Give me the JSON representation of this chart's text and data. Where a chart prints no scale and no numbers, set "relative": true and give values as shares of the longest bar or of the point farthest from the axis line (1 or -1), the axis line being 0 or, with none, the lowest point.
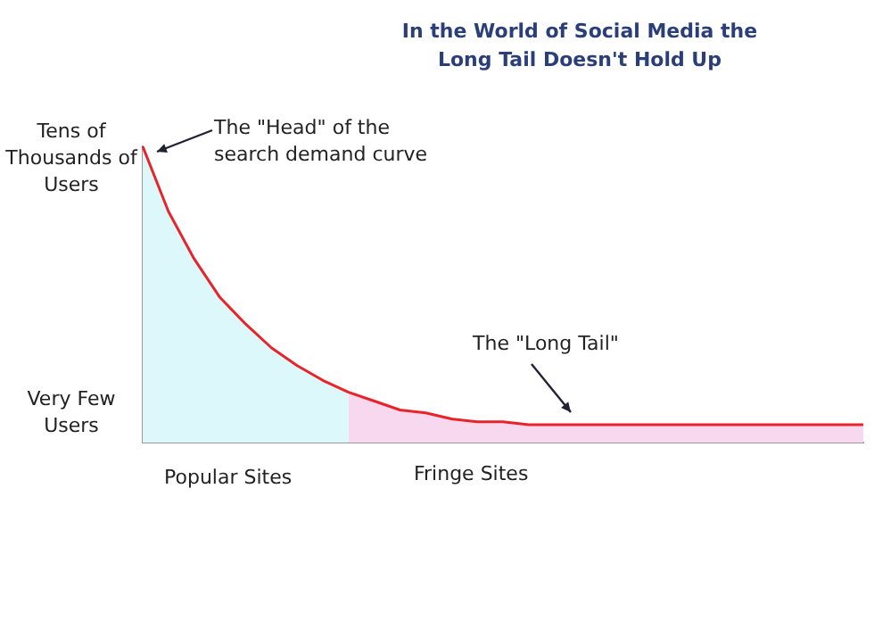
{
  "chart_data": {
    "type": "area",
    "title": "In the World of Social Media the Long Tail Doesn't Hold Up",
    "relative": true,
    "legend": false,
    "grid": false,
    "tick_labels": false,
    "categories": [
      null,
      null,
      null,
      null,
      null,
      null,
      null,
      null,
      null,
      null,
      null,
      null,
      null,
      null,
      null,
      null,
      null,
      null,
      null,
      null,
      null,
      null,
      null,
      null,
      null,
      null,
      null,
      null,
      null
    ],
    "series": [
      {
        "color": "#dcf8fa",
        "values": [
          1.0,
          0.78,
          0.62,
          0.49,
          0.4,
          0.32,
          0.26,
          0.21,
          0.17,
          null,
          null,
          null,
          null,
          null,
          null,
          null,
          null,
          null,
          null,
          null,
          null,
          null,
          null,
          null,
          null,
          null,
          null,
          null,
          null
        ]
      },
      {
        "color": "#f8d8ee",
        "values": [
          null,
          null,
          null,
          null,
          null,
          null,
          null,
          null,
          0.17,
          0.14,
          0.11,
          0.1,
          0.08,
          0.07,
          0.07,
          0.06,
          0.06,
          0.06,
          0.06,
          0.06,
          0.06,
          0.06,
          0.06,
          0.06,
          0.06,
          0.06,
          0.06,
          0.06,
          0.06
        ]
      },
      {
        "type": "line",
        "color": "#e8242a",
        "values": [
          1.0,
          0.78,
          0.62,
          0.49,
          0.4,
          0.32,
          0.26,
          0.21,
          0.17,
          0.14,
          0.11,
          0.1,
          0.08,
          0.07,
          0.07,
          0.06,
          0.06,
          0.06,
          0.06,
          0.06,
          0.06,
          0.06,
          0.06,
          0.06,
          0.06,
          0.06,
          0.06,
          0.06,
          0.06
        ]
      }
    ],
    "annotations": [
      "Tens of Thousands of Users",
      "Very Few Users",
      "The \"Head\" of the search demand curve",
      "The \"Long Tail\"",
      "Popular Sites",
      "Fringe Sites"
    ]
  }
}
